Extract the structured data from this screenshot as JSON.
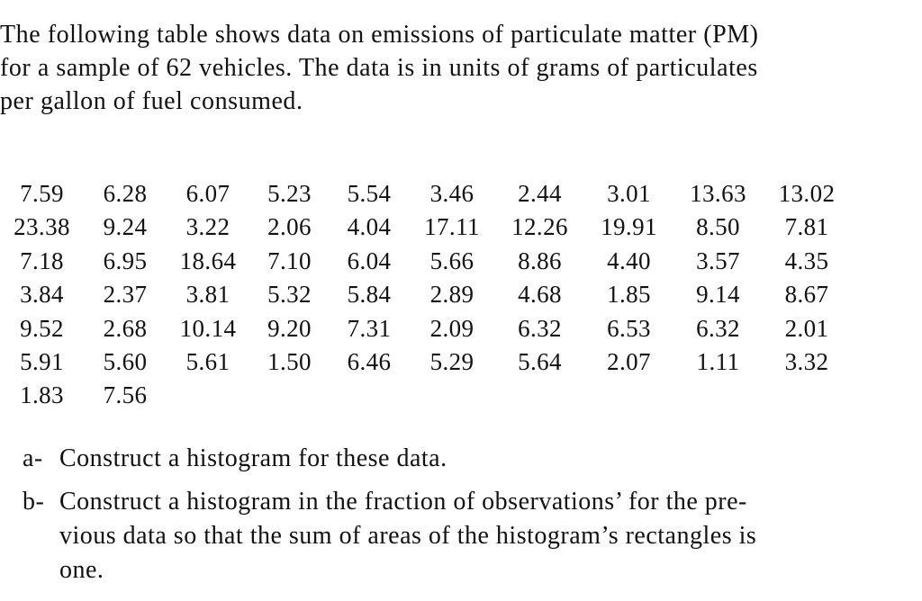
{
  "intro": {
    "lines": [
      "The following table shows data on emissions of particulate matter (PM)",
      "for a sample of 62 vehicles. The data is in units of grams of particulates",
      "per gallon of fuel consumed."
    ]
  },
  "table": {
    "rows": [
      [
        "7.59",
        "6.28",
        "6.07",
        "5.23",
        "5.54",
        "3.46",
        "2.44",
        "3.01",
        "13.63",
        "13.02"
      ],
      [
        "23.38",
        "9.24",
        "3.22",
        "2.06",
        "4.04",
        "17.11",
        "12.26",
        "19.91",
        "8.50",
        "7.81"
      ],
      [
        "7.18",
        "6.95",
        "18.64",
        "7.10",
        "6.04",
        "5.66",
        "8.86",
        "4.40",
        "3.57",
        "4.35"
      ],
      [
        "3.84",
        "2.37",
        "3.81",
        "5.32",
        "5.84",
        "2.89",
        "4.68",
        "1.85",
        "9.14",
        "8.67"
      ],
      [
        "9.52",
        "2.68",
        "10.14",
        "9.20",
        "7.31",
        "2.09",
        "6.32",
        "6.53",
        "6.32",
        "2.01"
      ],
      [
        "5.91",
        "5.60",
        "5.61",
        "1.50",
        "6.46",
        "5.29",
        "5.64",
        "2.07",
        "1.11",
        "3.32"
      ],
      [
        "1.83",
        "7.56"
      ]
    ]
  },
  "questions": [
    {
      "label": "a-",
      "lines": [
        "Construct a histogram for these data."
      ]
    },
    {
      "label": "b-",
      "lines": [
        "Construct a histogram in the fraction of observations’ for the pre-",
        "vious data so that the sum of areas of the histogram’s rectangles is",
        "one."
      ]
    }
  ]
}
